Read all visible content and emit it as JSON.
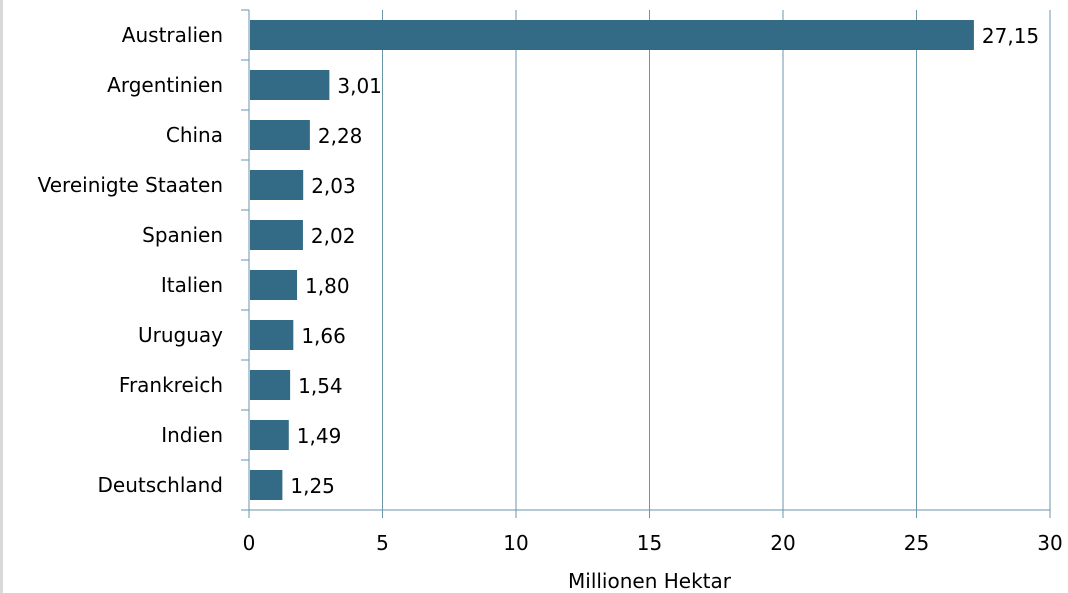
{
  "chart_data": {
    "type": "bar",
    "orientation": "horizontal",
    "categories": [
      "Australien",
      "Argentinien",
      "China",
      "Vereinigte Staaten",
      "Spanien",
      "Italien",
      "Uruguay",
      "Frankreich",
      "Indien",
      "Deutschland"
    ],
    "values": [
      27.15,
      3.01,
      2.28,
      2.03,
      2.02,
      1.8,
      1.66,
      1.54,
      1.49,
      1.25
    ],
    "value_labels": [
      "27,15",
      "3,01",
      "2,28",
      "2,03",
      "2,02",
      "1,80",
      "1,66",
      "1,54",
      "1,49",
      "1,25"
    ],
    "x_ticks": [
      0,
      5,
      10,
      15,
      20,
      25,
      30
    ],
    "xlim": [
      0,
      30
    ],
    "xlabel": "Millionen Hektar",
    "title": "",
    "grid": "vertical",
    "bar_color": "#336b87",
    "grid_color": "#6b95a8"
  }
}
